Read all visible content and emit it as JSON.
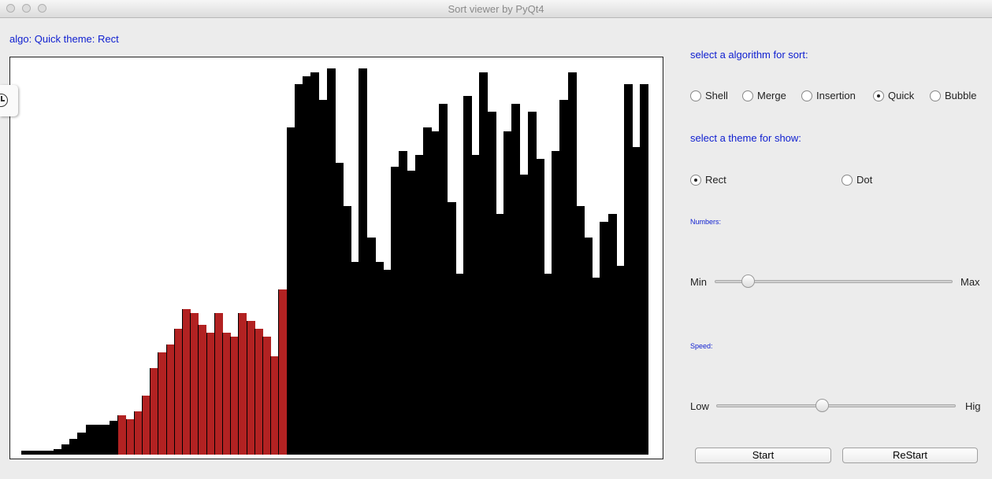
{
  "window": {
    "title": "Sort viewer by PyQt4"
  },
  "status": {
    "text": "algo: Quick theme: Rect"
  },
  "algorithm": {
    "heading": "select a algorithm for sort:",
    "options": [
      "Shell",
      "Merge",
      "Insertion",
      "Quick",
      "Bubble"
    ],
    "selected": "Quick"
  },
  "theme": {
    "heading": "select a theme for show:",
    "options": [
      "Rect",
      "Dot"
    ],
    "selected": "Rect"
  },
  "numbers": {
    "label": "Numbers:",
    "min_label": "Min",
    "max_label": "Max",
    "value": 0.12
  },
  "speed": {
    "label": "Speed:",
    "low_label": "Low",
    "high_label": "Hig",
    "value": 0.44
  },
  "buttons": {
    "start": "Start",
    "restart": "ReStart"
  },
  "colors": {
    "bar": "#000000",
    "active": "#b22222",
    "accent": "#1020d0"
  },
  "chart_data": {
    "type": "bar",
    "max": 100,
    "values": [
      1,
      1,
      1,
      1,
      1.5,
      2.5,
      4,
      5.5,
      7.5,
      7.5,
      7.5,
      8.5,
      10,
      9,
      11,
      15,
      22,
      26,
      28,
      32,
      37,
      36,
      33,
      31,
      36,
      31,
      30,
      36,
      34,
      32,
      30,
      25,
      42,
      83,
      94,
      96,
      97,
      90,
      98,
      74,
      63,
      49,
      98,
      55,
      49,
      47,
      73,
      77,
      72,
      76,
      83,
      82,
      89,
      64,
      46,
      91,
      76,
      97,
      87,
      61,
      82,
      89,
      71,
      87,
      75,
      46,
      77,
      90,
      97,
      63,
      55,
      45,
      59,
      61,
      48,
      94,
      78,
      94
    ],
    "highlight_range": [
      12,
      32
    ]
  }
}
